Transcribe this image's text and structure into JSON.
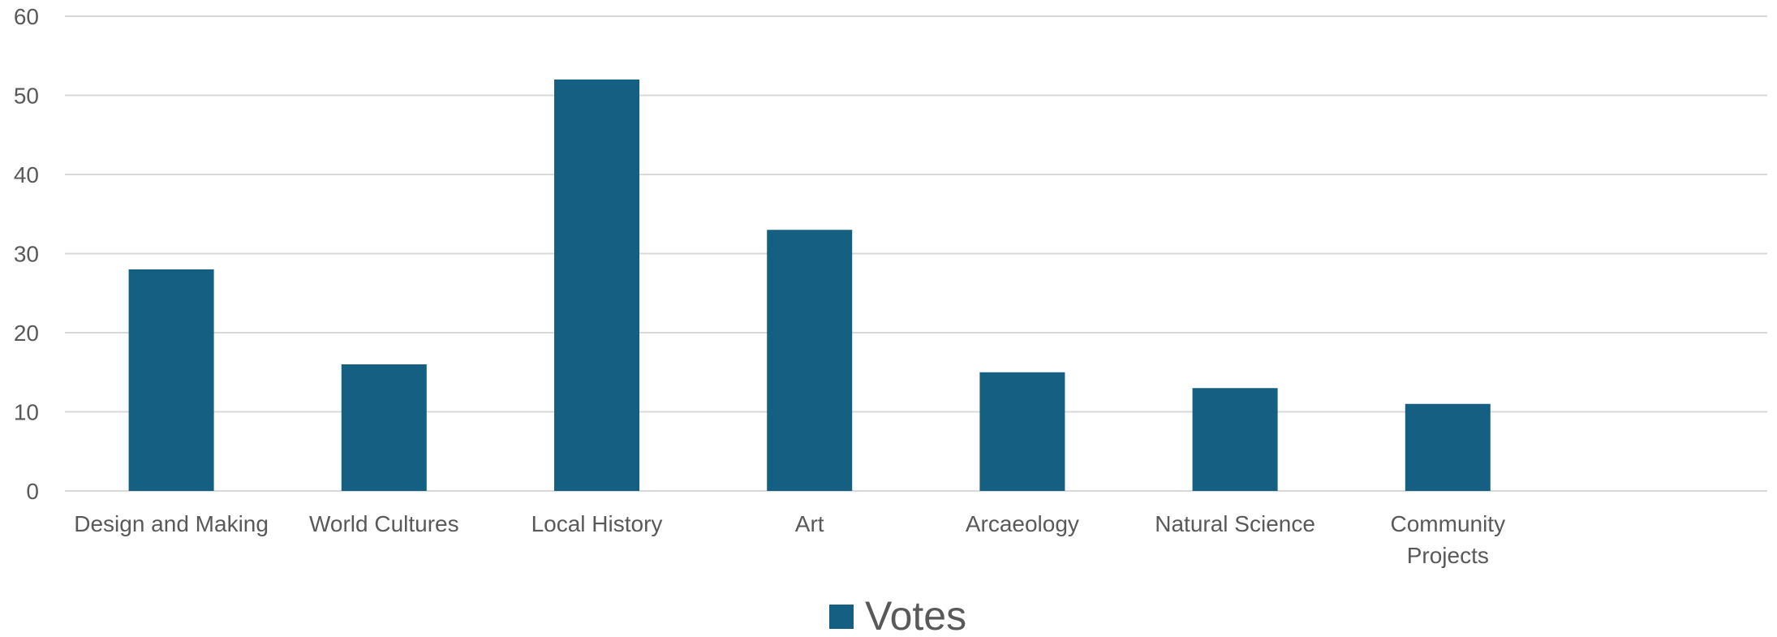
{
  "chart_data": {
    "type": "bar",
    "categories": [
      "Design and Making",
      "World Cultures",
      "Local History",
      "Art",
      "Arcaeology",
      "Natural Science",
      "Community Projects"
    ],
    "category_label_lines": [
      [
        "Design and Making"
      ],
      [
        "World Cultures"
      ],
      [
        "Local History"
      ],
      [
        "Art"
      ],
      [
        "Arcaeology"
      ],
      [
        "Natural Science"
      ],
      [
        "Community",
        "Projects"
      ]
    ],
    "series": [
      {
        "name": "Votes",
        "values": [
          28,
          16,
          52,
          33,
          15,
          13,
          11
        ],
        "color": "#156082"
      }
    ],
    "ylim": [
      0,
      60
    ],
    "y_ticks": [
      0,
      10,
      20,
      30,
      40,
      50,
      60
    ],
    "grid": true,
    "legend_position": "bottom",
    "title": "",
    "xlabel": "",
    "ylabel": ""
  }
}
